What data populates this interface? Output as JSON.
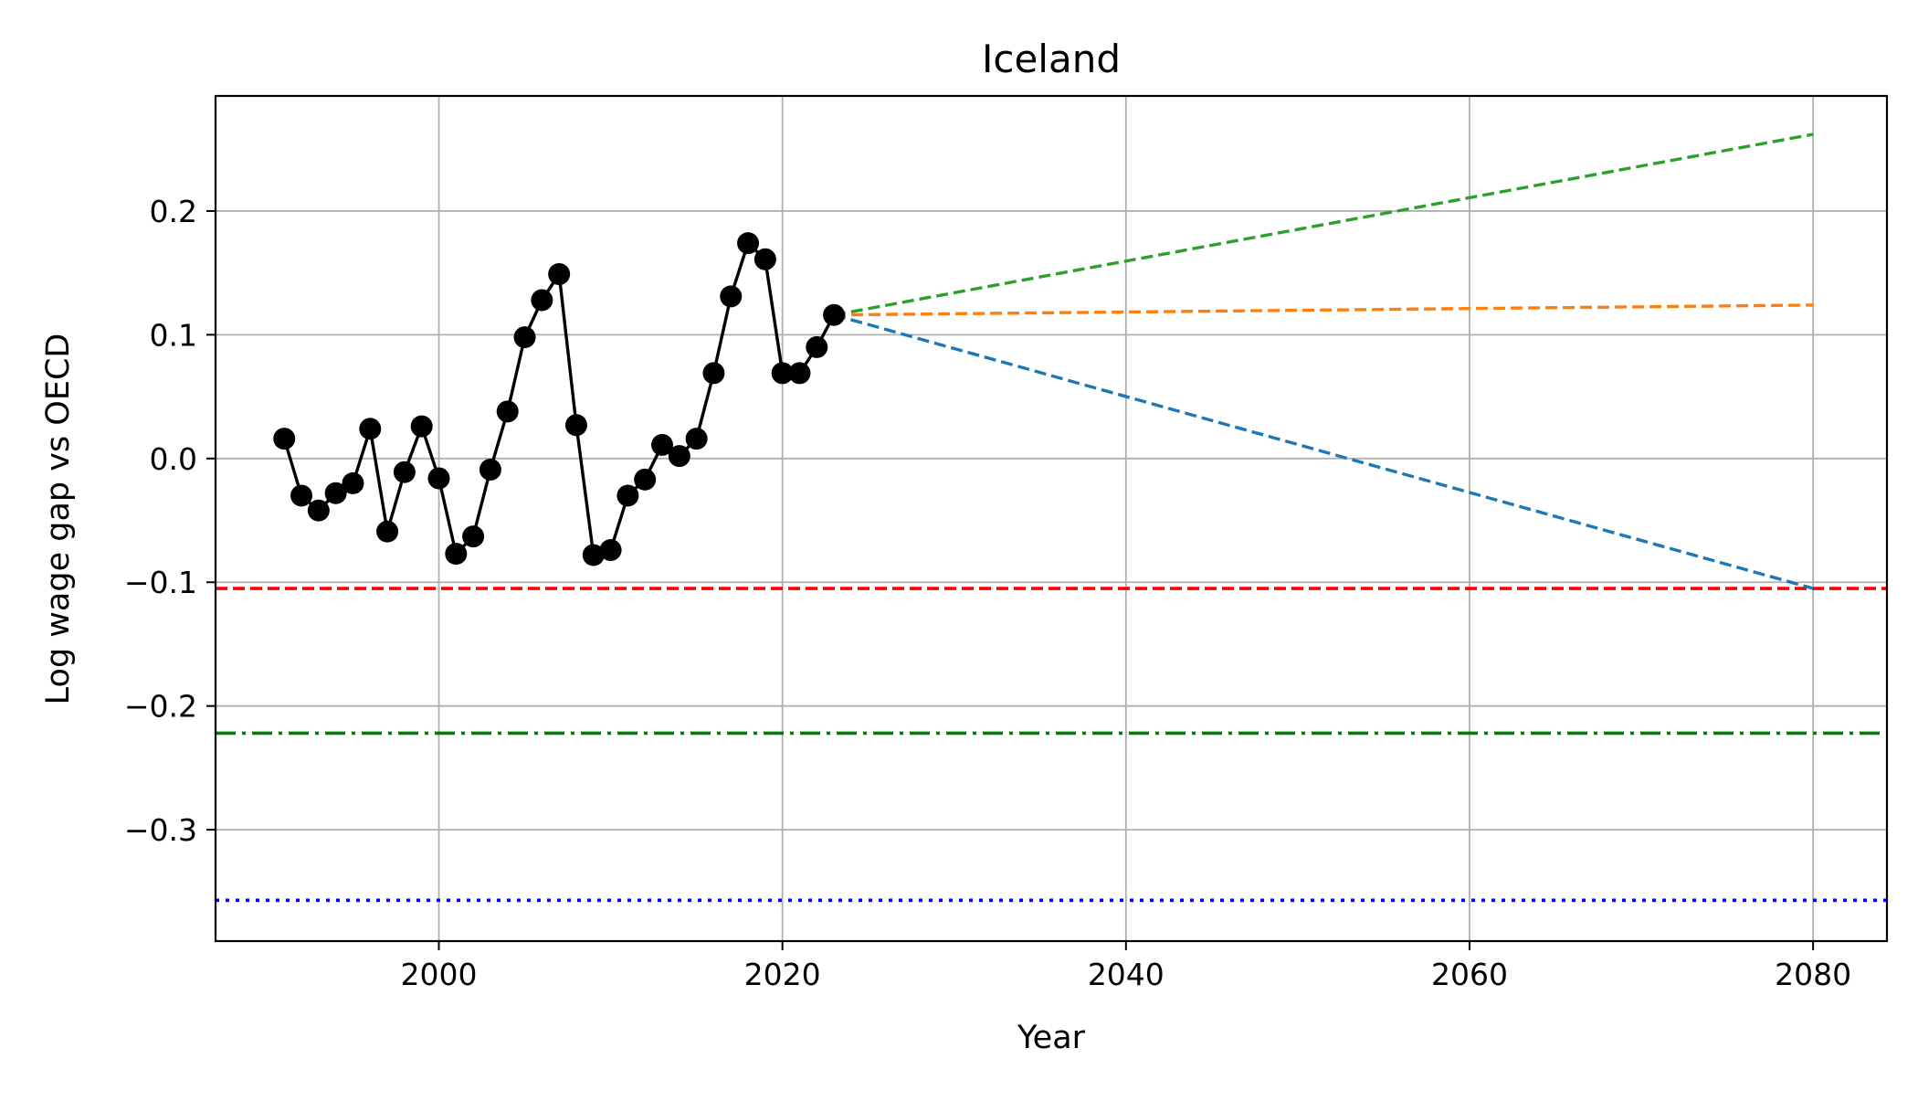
{
  "chart_data": {
    "type": "line",
    "title": "Iceland",
    "xlabel": "Year",
    "ylabel": "Log wage gap vs OECD",
    "xlim": [
      1987,
      2084.3
    ],
    "ylim": [
      -0.39,
      0.293
    ],
    "xticks": [
      2000,
      2020,
      2040,
      2060,
      2080
    ],
    "xtick_labels": [
      "2000",
      "2020",
      "2040",
      "2060",
      "2080"
    ],
    "yticks": [
      -0.3,
      -0.2,
      -0.1,
      0.0,
      0.1,
      0.2
    ],
    "ytick_labels": [
      "−0.3",
      "−0.2",
      "−0.1",
      "0.0",
      "0.1",
      "0.2"
    ],
    "grid": true,
    "legend": "none",
    "series": [
      {
        "color": "#000000",
        "style": "solid-with-markers",
        "x": [
          1991,
          1992,
          1993,
          1994,
          1995,
          1996,
          1997,
          1998,
          1999,
          2000,
          2001,
          2002,
          2003,
          2004,
          2005,
          2006,
          2007,
          2008,
          2009,
          2010,
          2011,
          2012,
          2013,
          2014,
          2015,
          2016,
          2017,
          2018,
          2019,
          2020,
          2021,
          2022,
          2023
        ],
        "y": [
          0.016,
          -0.03,
          -0.042,
          -0.028,
          -0.02,
          0.024,
          -0.059,
          -0.011,
          0.026,
          -0.016,
          -0.077,
          -0.063,
          -0.009,
          0.038,
          0.098,
          0.128,
          0.149,
          0.027,
          -0.078,
          -0.074,
          -0.03,
          -0.017,
          0.011,
          0.002,
          0.016,
          0.069,
          0.131,
          0.174,
          0.161,
          0.069,
          0.069,
          0.09,
          0.116
        ]
      },
      {
        "color": "#2ca02c",
        "style": "dashed",
        "x": [
          2023,
          2080
        ],
        "y": [
          0.116,
          0.262
        ]
      },
      {
        "color": "#ff7f0e",
        "style": "dashed",
        "x": [
          2023,
          2080
        ],
        "y": [
          0.116,
          0.124
        ]
      },
      {
        "color": "#1f77b4",
        "style": "dashed",
        "x": [
          2023,
          2080
        ],
        "y": [
          0.116,
          -0.105
        ]
      }
    ],
    "reference_lines": [
      {
        "y": -0.105,
        "color": "#ff0000",
        "style": "dashed"
      },
      {
        "y": -0.222,
        "color": "#008000",
        "style": "dashdot"
      },
      {
        "y": -0.357,
        "color": "#0000ff",
        "style": "dotted"
      }
    ]
  }
}
